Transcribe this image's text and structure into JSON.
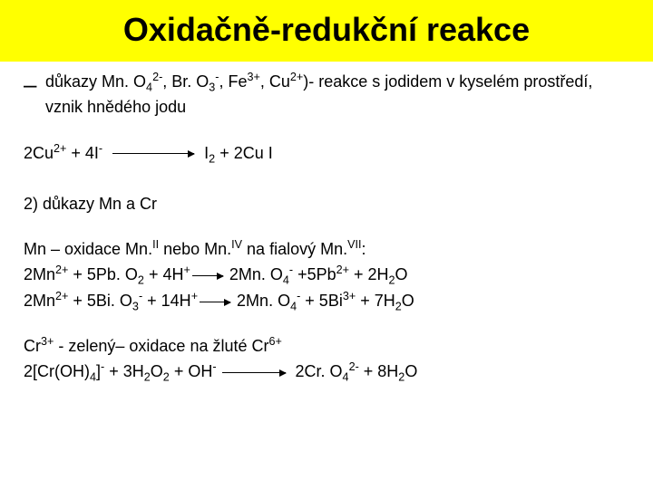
{
  "colors": {
    "title_bg": "#ffff00",
    "title_text": "#000000",
    "body_text": "#000000",
    "arrow": "#000000"
  },
  "title": {
    "text": "Oxidačně-redukční reakce",
    "fontsize": 36,
    "weight": "bold"
  },
  "body_fontsize": 18,
  "bullet": {
    "dash_glyph": "–",
    "line1_a": "důkazy Mn. O",
    "line1_sub1": "4",
    "line1_sup1": "2-",
    "line1_b": ", Br. O",
    "line1_sub2": "3",
    "line1_sup2": "-",
    "line1_c": ", Fe",
    "line1_sup3": "3+",
    "line1_d": ", Cu",
    "line1_sup4": "2+",
    "line1_e": ")- reakce s jodidem v kyselém prostředí,",
    "line2": "vznik hnědého jodu"
  },
  "eq1": {
    "lhs_a": "2Cu",
    "lhs_sup1": "2+",
    "lhs_b": " + 4I",
    "lhs_sup2": "-",
    "arrow_width": 90,
    "rhs_a": "I",
    "rhs_sub1": "2",
    "rhs_b": " + 2Cu I"
  },
  "section2_label": "2) důkazy Mn a Cr",
  "mn": {
    "intro_a": "Mn – oxidace Mn.",
    "intro_sup1": "II",
    "intro_b": " nebo Mn.",
    "intro_sup2": "IV",
    "intro_c": " na fialový Mn.",
    "intro_sup3": "VII",
    "intro_d": ":",
    "r1_lhs_a": "2Mn",
    "r1_lhs_sup1": "2+",
    "r1_lhs_b": " + 5Pb. O",
    "r1_lhs_sub1": "2",
    "r1_lhs_c": " + 4H",
    "r1_lhs_sup2": "+",
    "r1_arrow_width": 34,
    "r1_rhs_a": " 2Mn. O",
    "r1_rhs_sub1": "4",
    "r1_rhs_sup1": "-",
    "r1_rhs_b": " +5Pb",
    "r1_rhs_sup2": "2+",
    "r1_rhs_c": " + 2H",
    "r1_rhs_sub2": "2",
    "r1_rhs_d": "O",
    "r2_lhs_a": "2Mn",
    "r2_lhs_sup1": "2+",
    "r2_lhs_b": " + 5Bi. O",
    "r2_lhs_sub1": "3",
    "r2_lhs_sup2": "-",
    "r2_lhs_c": " + 14H",
    "r2_lhs_sup3": "+",
    "r2_arrow_width": 34,
    "r2_rhs_a": " 2Mn. O",
    "r2_rhs_sub1": "4",
    "r2_rhs_sup1": "-",
    "r2_rhs_b": " + 5Bi",
    "r2_rhs_sup2": "3+",
    "r2_rhs_c": " + 7H",
    "r2_rhs_sub2": "2",
    "r2_rhs_d": "O"
  },
  "cr": {
    "intro_a": "Cr",
    "intro_sup1": "3+",
    "intro_b": " - zelený– oxidace na žluté Cr",
    "intro_sup2": "6+",
    "r_lhs_a": "2[Cr(OH)",
    "r_lhs_sub1": "4",
    "r_lhs_b": "]",
    "r_lhs_sup1": "-",
    "r_lhs_c": " + 3H",
    "r_lhs_sub2": "2",
    "r_lhs_d": "O",
    "r_lhs_sub3": "2",
    "r_lhs_e": " + OH",
    "r_lhs_sup2": "-",
    "r_arrow_width": 70,
    "r_rhs_a": " 2Cr. O",
    "r_rhs_sub1": "4",
    "r_rhs_sup1": "2-",
    "r_rhs_b": " + 8H",
    "r_rhs_sub2": "2",
    "r_rhs_c": "O"
  }
}
